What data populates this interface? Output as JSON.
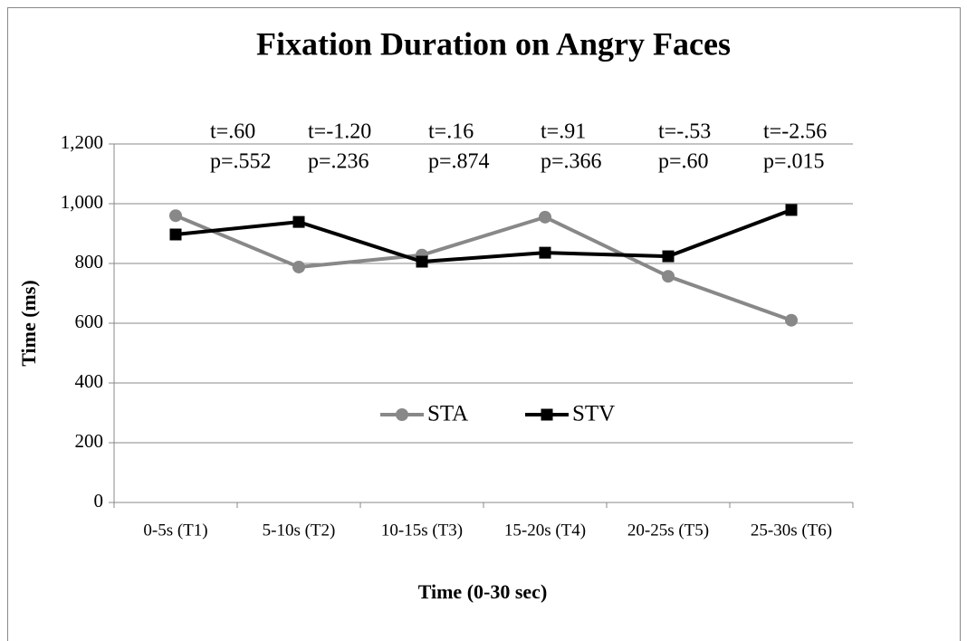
{
  "chart_data": {
    "type": "line",
    "title": "Fixation Duration on Angry Faces",
    "xlabel": "Time (0-30 sec)",
    "ylabel": "Time (ms)",
    "categories": [
      "0-5s (T1)",
      "5-10s (T2)",
      "10-15s (T3)",
      "15-20s (T4)",
      "20-25s (T5)",
      "25-30s (T6)"
    ],
    "series": [
      {
        "name": "STA",
        "color": "#888888",
        "marker": "circle",
        "values": [
          960,
          788,
          828,
          955,
          757,
          610
        ]
      },
      {
        "name": "STV",
        "color": "#000000",
        "marker": "square",
        "values": [
          897,
          939,
          806,
          836,
          824,
          979
        ]
      }
    ],
    "annotations": [
      {
        "t": "t=.60",
        "p": "p=.552"
      },
      {
        "t": "t=-1.20",
        "p": "p=.236"
      },
      {
        "t": "t=.16",
        "p": "p=.874"
      },
      {
        "t": "t=.91",
        "p": "p=.366"
      },
      {
        "t": "t=-.53",
        "p": "p=.60"
      },
      {
        "t": "t=-2.56",
        "p": "p=.015"
      }
    ],
    "ylim": [
      0,
      1200
    ],
    "yticks": [
      0,
      200,
      400,
      600,
      800,
      {
        "value": 1000,
        "label": "1,000"
      },
      {
        "value": 1200,
        "label": "1,200"
      }
    ],
    "grid": true,
    "legend": "center"
  }
}
